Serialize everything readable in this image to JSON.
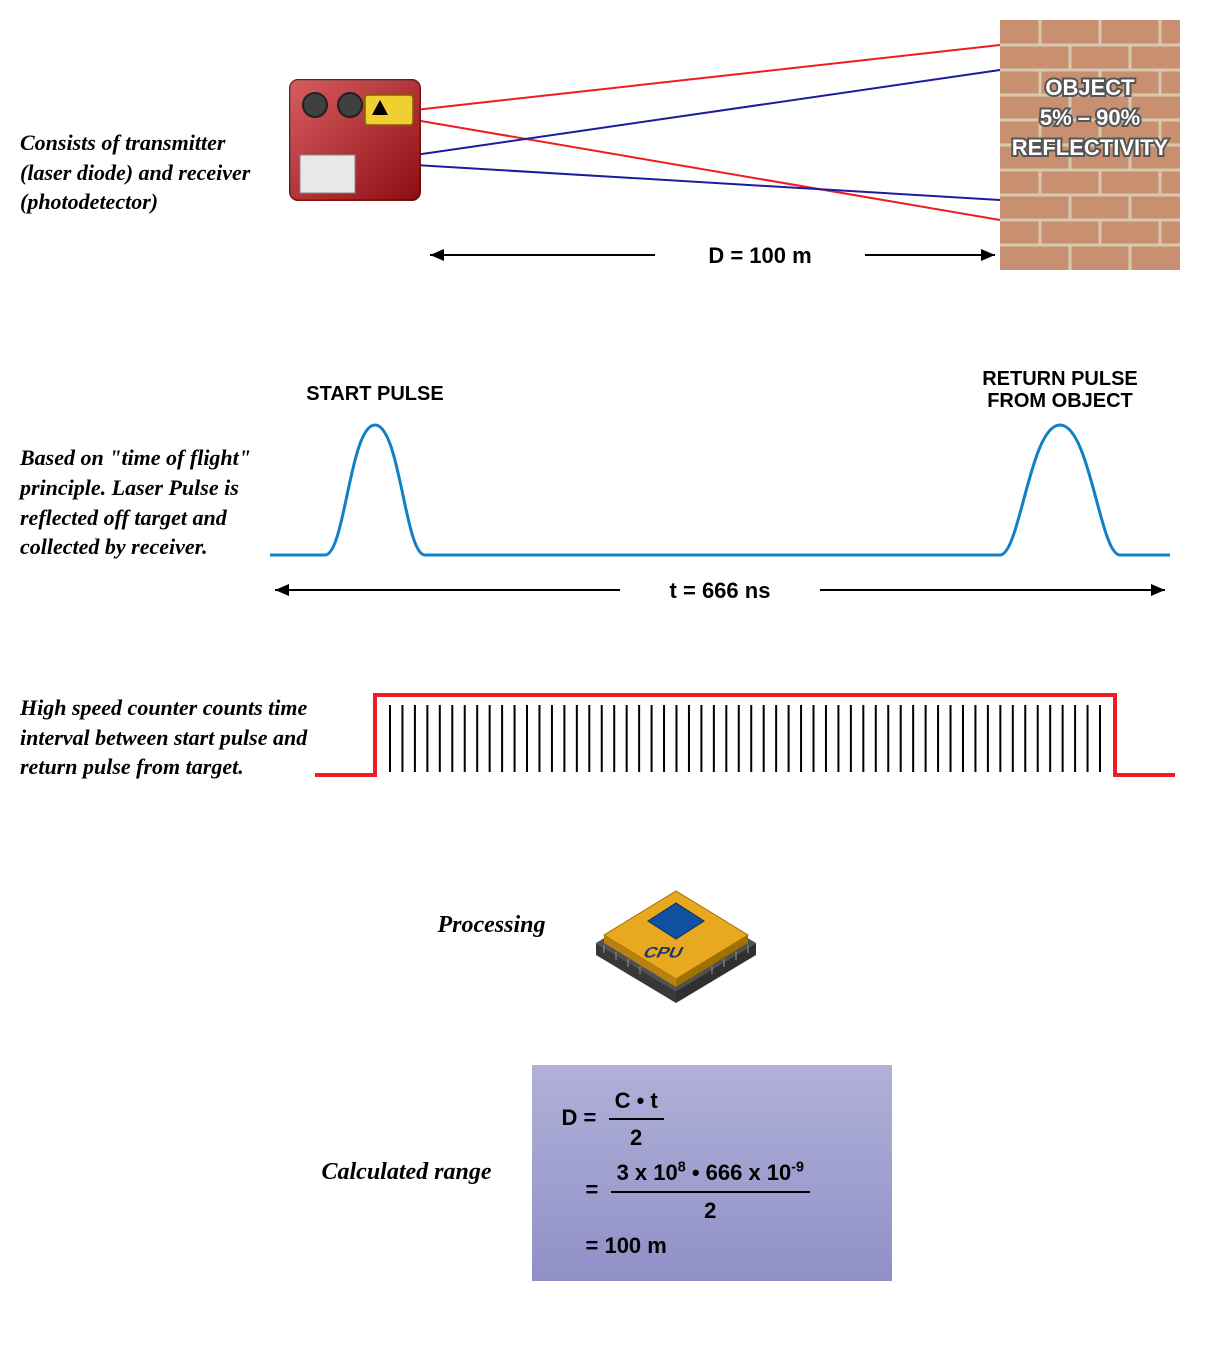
{
  "section1": {
    "desc": "Consists of transmitter (laser diode) and receiver (photodetector)",
    "distance_label": "D = 100 m",
    "wall_line1": "OBJECT",
    "wall_line2": "5% – 90%",
    "wall_line3": "REFLECTIVITY",
    "laser_color": "#ee1c23",
    "receive_color": "#1b1c9e",
    "device_color": "#c8151b",
    "brick_color": "#c89070",
    "brick_mortar": "#d8c8b0"
  },
  "section2": {
    "desc": "Based on \"time of flight\" principle. Laser Pulse is reflected off target and collected by receiver.",
    "start_label": "START PULSE",
    "return_label": "RETURN PULSE FROM OBJECT",
    "time_label": "t = 666 ns",
    "pulse_color": "#1080c8"
  },
  "section3": {
    "desc": "High speed counter counts time interval between start pulse and return pulse from target.",
    "gate_color": "#ee1c23",
    "tick_color": "#000000",
    "tick_count": 58
  },
  "section4": {
    "label": "Processing",
    "cpu_text": "CPU",
    "cpu_body": "#e8a820",
    "cpu_chip": "#1050a0",
    "cpu_base": "#606060"
  },
  "section5": {
    "label": "Calculated range",
    "eq1_left": "D =",
    "eq1_num": "C • t",
    "eq1_den": "2",
    "eq2_num_a": "3 x 10",
    "eq2_num_a_sup": "8",
    "eq2_num_mid": " • 666 x 10",
    "eq2_num_b_sup": "-9",
    "eq2_den": "2",
    "eq3": "= 100 m",
    "box_bg_top": "#b0b0d8",
    "box_bg_bot": "#9090c8"
  }
}
